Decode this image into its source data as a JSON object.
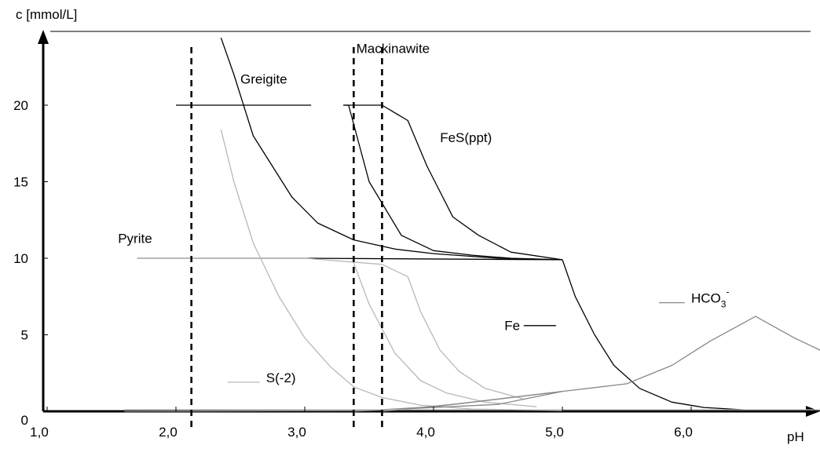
{
  "chart_data": {
    "type": "line",
    "xlabel": "pH",
    "ylabel": "c [mmol/L]",
    "xlim": [
      1.0,
      7.5
    ],
    "ylim": [
      0,
      24.5
    ],
    "x_ticks": [
      {
        "value": 1.0,
        "label": "1,0"
      },
      {
        "value": 2.0,
        "label": "2,0"
      },
      {
        "value": 3.0,
        "label": "3,0"
      },
      {
        "value": 4.0,
        "label": "4,0"
      },
      {
        "value": 5.0,
        "label": "5,0"
      },
      {
        "value": 6.0,
        "label": "6,0"
      }
    ],
    "y_ticks": [
      {
        "value": 0,
        "label": "0"
      },
      {
        "value": 5,
        "label": "5"
      },
      {
        "value": 10,
        "label": "10"
      },
      {
        "value": 15,
        "label": "15"
      },
      {
        "value": 20,
        "label": "20"
      }
    ],
    "phase_boundaries": [
      2.12,
      3.38,
      3.6
    ],
    "annotations": [
      {
        "text": "Greigite",
        "x": 2.5,
        "y": 21.4
      },
      {
        "text": "Mackinawite",
        "x": 3.4,
        "y": 23.4
      },
      {
        "text": "FeS(ppt)",
        "x": 4.05,
        "y": 17.6
      },
      {
        "text": "Pyrite",
        "x": 1.55,
        "y": 11.0
      },
      {
        "text": "Fe",
        "x": 4.55,
        "y": 5.3
      },
      {
        "text": "S(-2)",
        "x": 2.7,
        "y": 1.9
      },
      {
        "text": "HCO",
        "sub": "3",
        "sup": "-",
        "x": 6.0,
        "y": 7.1
      }
    ],
    "series": [
      {
        "color": "#000000",
        "x": [
          2.0,
          3.05
        ],
        "values": [
          20,
          20
        ]
      },
      {
        "color": "#000000",
        "x": [
          3.3,
          3.6
        ],
        "values": [
          20,
          20
        ]
      },
      {
        "color": "#000000",
        "x": [
          3.3,
          3.34,
          3.5,
          3.75,
          4.0,
          4.3,
          4.6,
          5.0
        ],
        "values": [
          20,
          20,
          15,
          11.5,
          10.5,
          10.2,
          10.0,
          9.9
        ]
      },
      {
        "color": "#000000",
        "x": [
          3.6,
          3.8,
          3.95,
          4.15,
          4.35,
          4.6,
          5.0
        ],
        "values": [
          20,
          19,
          16,
          12.7,
          11.5,
          10.4,
          9.9
        ]
      },
      {
        "color": "#000000",
        "x": [
          2.35,
          2.45,
          2.6,
          2.9,
          3.1,
          3.38,
          3.7,
          4.0,
          4.5,
          5.0
        ],
        "values": [
          24.4,
          22,
          18,
          14,
          12.3,
          11.2,
          10.6,
          10.3,
          10.0,
          9.9
        ]
      },
      {
        "color": "#000000",
        "x": [
          1.7,
          3.0,
          5.0
        ],
        "values": [
          10,
          10,
          9.9
        ]
      },
      {
        "color": "#000000",
        "x": [
          5.0,
          5.1,
          5.25,
          5.4,
          5.6,
          5.85,
          6.1,
          6.4,
          6.8,
          7.5
        ],
        "values": [
          9.9,
          7.5,
          5.0,
          3.0,
          1.5,
          0.6,
          0.25,
          0.1,
          0.05,
          0.0
        ]
      },
      {
        "color": "#b8b8b8",
        "x": [
          2.35,
          2.45,
          2.6,
          2.8,
          3.0,
          3.2,
          3.38,
          3.6,
          3.9,
          4.3,
          5.0
        ],
        "values": [
          18.4,
          15,
          11,
          7.5,
          4.8,
          2.9,
          1.6,
          0.9,
          0.4,
          0.15,
          0.05
        ]
      },
      {
        "color": "#b8b8b8",
        "x": [
          3.38,
          3.5,
          3.7,
          3.9,
          4.1,
          4.4,
          4.8
        ],
        "values": [
          9.7,
          7,
          3.8,
          2.0,
          1.2,
          0.6,
          0.3
        ]
      },
      {
        "color": "#b8b8b8",
        "x": [
          3.6,
          3.8,
          3.9,
          4.05,
          4.2,
          4.4,
          4.7
        ],
        "values": [
          9.6,
          8.8,
          6.5,
          4.0,
          2.6,
          1.5,
          0.8
        ]
      },
      {
        "color": "#b8b8b8",
        "x": [
          1.7,
          3.0,
          3.6
        ],
        "values": [
          10,
          10,
          9.6
        ]
      },
      {
        "color": "#888888",
        "x": [
          1.6,
          3.5,
          4.5,
          5.0,
          5.5,
          5.85,
          6.15,
          6.5,
          6.8,
          7.2,
          7.5
        ],
        "values": [
          0.0,
          0.05,
          0.45,
          1.3,
          1.8,
          3.0,
          4.6,
          6.2,
          4.8,
          3.2,
          2.6
        ]
      },
      {
        "color": "#888888",
        "x": [
          3.38,
          4.0,
          4.5,
          5.0
        ],
        "values": [
          0.0,
          0.3,
          0.8,
          1.3
        ]
      },
      {
        "color": "#888888",
        "x": [
          3.6,
          4.2,
          5.0
        ],
        "values": [
          0.0,
          0.5,
          1.3
        ]
      },
      {
        "color": "#bbbbbb",
        "x": [
          1.6,
          7.5
        ],
        "values": [
          0.1,
          0.1
        ]
      }
    ],
    "legend_marks": [
      {
        "color": "#b8b8b8",
        "x": [
          2.4,
          2.65
        ],
        "values": [
          1.9,
          1.9
        ]
      },
      {
        "color": "#888888",
        "x": [
          5.75,
          5.95
        ],
        "values": [
          7.1,
          7.1
        ]
      },
      {
        "color": "#000000",
        "x": [
          4.7,
          4.95
        ],
        "values": [
          5.6,
          5.6
        ]
      }
    ],
    "grid": false
  }
}
